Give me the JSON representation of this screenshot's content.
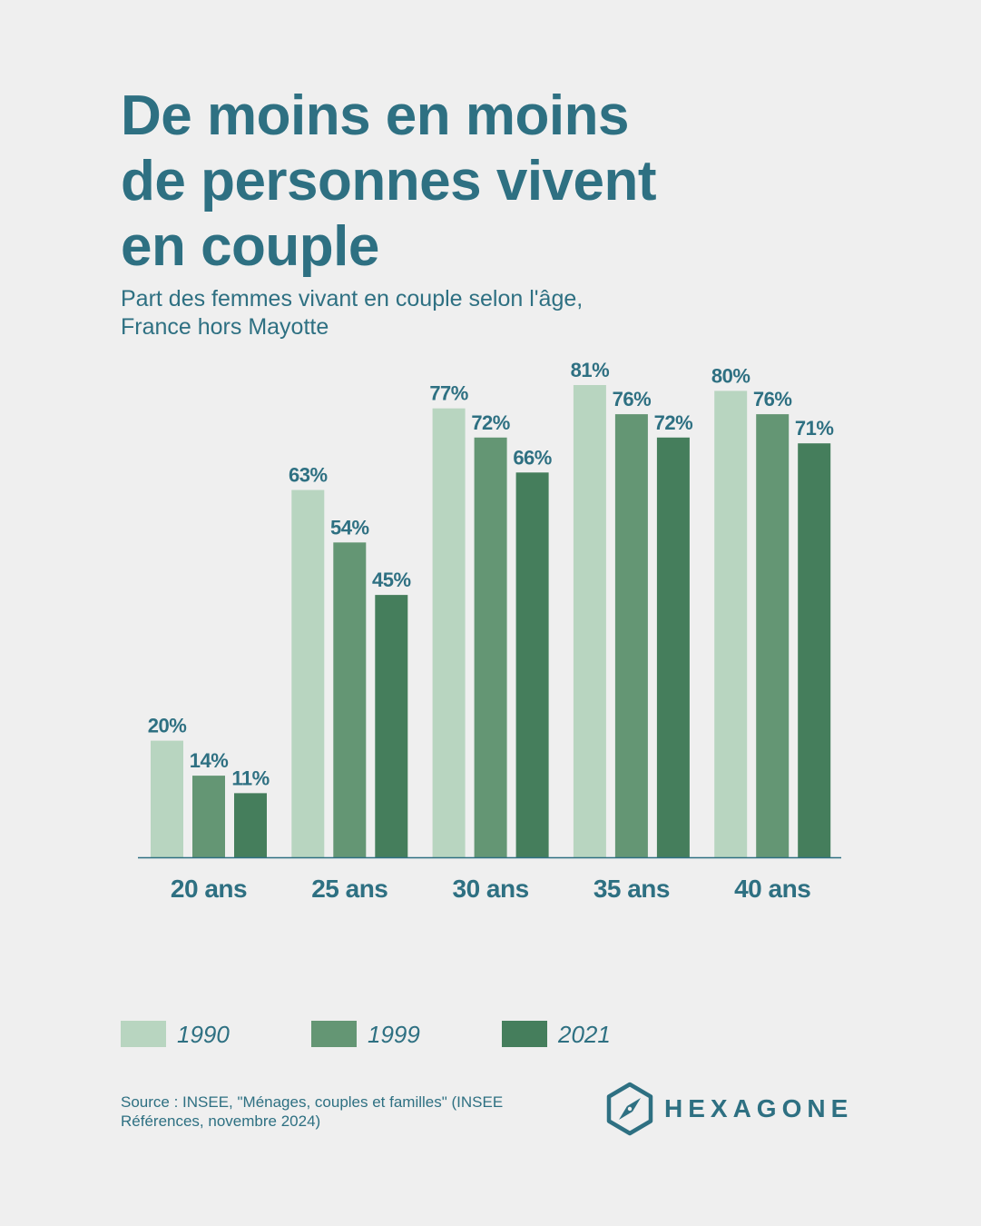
{
  "header": {
    "title_lines": [
      "De moins en moins",
      "de personnes vivent",
      "en couple"
    ],
    "subtitle_lines": [
      "Part des femmes vivant en couple selon l'âge,",
      "France hors Mayotte"
    ]
  },
  "colors": {
    "background": "#efefef",
    "text": "#2e7082",
    "axis": "#2e7082",
    "series": [
      "#b8d5c0",
      "#649674",
      "#457e5c"
    ]
  },
  "chart_data": {
    "type": "bar",
    "title": "De moins en moins de personnes vivent en couple",
    "subtitle": "Part des femmes vivant en couple selon l'âge, France hors Mayotte",
    "categories": [
      "20 ans",
      "25 ans",
      "30 ans",
      "35 ans",
      "40 ans"
    ],
    "series": [
      {
        "name": "1990",
        "values": [
          20,
          63,
          77,
          81,
          80
        ]
      },
      {
        "name": "1999",
        "values": [
          14,
          54,
          72,
          76,
          76
        ]
      },
      {
        "name": "2021",
        "values": [
          11,
          45,
          66,
          72,
          71
        ]
      }
    ],
    "value_suffix": "%",
    "ylim": [
      0,
      100
    ],
    "grid": false,
    "legend": "bottom-left",
    "xlabel": "",
    "ylabel": ""
  },
  "footer": {
    "source": "Source : INSEE, \"Ménages, couples et familles\" (INSEE Références, novembre 2024)",
    "brand": "HEXAGONE",
    "brand_icon": "compass-hexagon-icon"
  }
}
